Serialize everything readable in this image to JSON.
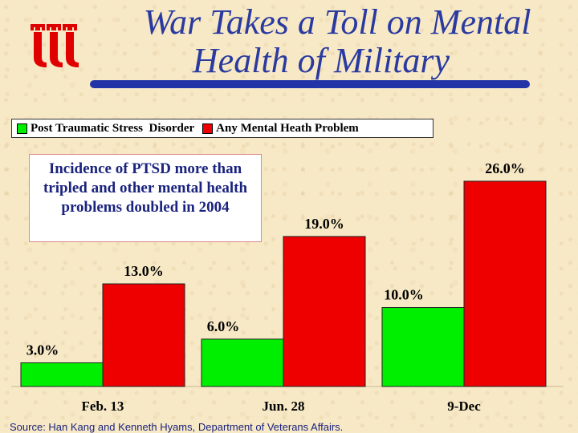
{
  "slide": {
    "title_line_1": "War Takes a Toll on Mental",
    "title_line_2": "Health of Military",
    "annotation": "Incidence of PTSD more than tripled and other mental health problems doubled in 2004",
    "source": "Source:  Han Kang and Kenneth Hyams, Department of Veterans Affairs.",
    "logo_icon": "triple-tower-logo-icon"
  },
  "chart_data": {
    "type": "bar",
    "categories": [
      "Feb. 13",
      "Jun. 28",
      "9-Dec"
    ],
    "series": [
      {
        "name": "Post Traumatic Stress  Disorder",
        "values": [
          3.0,
          6.0,
          10.0
        ],
        "labels": [
          "3.0%",
          "6.0%",
          "10.0%"
        ],
        "color": "#00ee00"
      },
      {
        "name": "Any Mental Heath Problem",
        "values": [
          13.0,
          19.0,
          26.0
        ],
        "labels": [
          "13.0%",
          "19.0%",
          "26.0%"
        ],
        "color": "#ee0000"
      }
    ],
    "title": "",
    "xlabel": "",
    "ylabel": "",
    "ylim": [
      0,
      26
    ],
    "legend_position": "top",
    "grid": false
  }
}
